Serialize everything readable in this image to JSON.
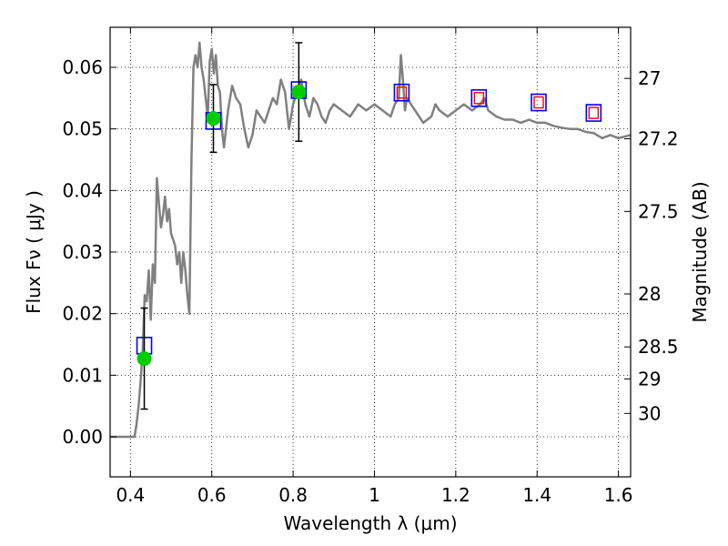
{
  "chart_data": {
    "type": "line",
    "xlabel": "Wavelength  λ (μm)",
    "ylabel": "Flux  Fν  ( μJy )",
    "y2label": "Magnitude (AB)",
    "xlim": [
      0.35,
      1.63
    ],
    "ylim": [
      -0.0065,
      0.0665
    ],
    "grid": true,
    "x_ticks": [
      0.4,
      0.6,
      0.8,
      1.0,
      1.2,
      1.4,
      1.6
    ],
    "x_tick_labels": [
      "0.4",
      "0.6",
      "0.8",
      "1",
      "1.2",
      "1.4",
      "1.6"
    ],
    "y_ticks": [
      0.0,
      0.01,
      0.02,
      0.03,
      0.04,
      0.05,
      0.06
    ],
    "y_tick_labels": [
      "0.00",
      "0.01",
      "0.02",
      "0.03",
      "0.04",
      "0.05",
      "0.06"
    ],
    "y2_ticks": [
      {
        "label": "27",
        "flux": 0.0582
      },
      {
        "label": "27.2",
        "flux": 0.0484
      },
      {
        "label": "27.5",
        "flux": 0.0366
      },
      {
        "label": "28",
        "flux": 0.0232
      },
      {
        "label": "28.5",
        "flux": 0.0146
      },
      {
        "label": "29",
        "flux": 0.0094
      },
      {
        "label": "30",
        "flux": 0.0038
      }
    ],
    "colors": {
      "sed_line": "#808080",
      "model_box": "#0000ff",
      "inner_box": "#ff0000",
      "observed": "#00cc00",
      "errorbar": "#000000",
      "grid": "#000000"
    },
    "series": [
      {
        "style": "line",
        "x": [
          0.35,
          0.41,
          0.415,
          0.42,
          0.425,
          0.43,
          0.435,
          0.44,
          0.445,
          0.45,
          0.455,
          0.46,
          0.465,
          0.47,
          0.475,
          0.48,
          0.485,
          0.49,
          0.495,
          0.5,
          0.505,
          0.51,
          0.515,
          0.52,
          0.525,
          0.53,
          0.535,
          0.54,
          0.545,
          0.55,
          0.555,
          0.56,
          0.565,
          0.57,
          0.575,
          0.58,
          0.585,
          0.59,
          0.595,
          0.6,
          0.605,
          0.61,
          0.615,
          0.62,
          0.625,
          0.63,
          0.64,
          0.65,
          0.66,
          0.67,
          0.68,
          0.69,
          0.7,
          0.71,
          0.72,
          0.73,
          0.74,
          0.75,
          0.76,
          0.77,
          0.78,
          0.79,
          0.8,
          0.81,
          0.82,
          0.83,
          0.84,
          0.85,
          0.86,
          0.87,
          0.88,
          0.89,
          0.9,
          0.92,
          0.94,
          0.96,
          0.98,
          1.0,
          1.02,
          1.04,
          1.05,
          1.06,
          1.065,
          1.07,
          1.075,
          1.08,
          1.1,
          1.12,
          1.14,
          1.15,
          1.16,
          1.18,
          1.2,
          1.22,
          1.24,
          1.26,
          1.27,
          1.28,
          1.3,
          1.32,
          1.34,
          1.36,
          1.38,
          1.4,
          1.42,
          1.44,
          1.46,
          1.48,
          1.5,
          1.52,
          1.54,
          1.56,
          1.58,
          1.6,
          1.63
        ],
        "y": [
          0.0,
          0.0,
          0.002,
          0.005,
          0.009,
          0.014,
          0.023,
          0.022,
          0.027,
          0.019,
          0.028,
          0.025,
          0.042,
          0.038,
          0.034,
          0.036,
          0.039,
          0.035,
          0.037,
          0.033,
          0.032,
          0.031,
          0.028,
          0.03,
          0.025,
          0.03,
          0.027,
          0.023,
          0.02,
          0.045,
          0.06,
          0.062,
          0.06,
          0.064,
          0.06,
          0.058,
          0.055,
          0.052,
          0.061,
          0.063,
          0.059,
          0.062,
          0.057,
          0.056,
          0.05,
          0.047,
          0.053,
          0.057,
          0.055,
          0.054,
          0.05,
          0.047,
          0.049,
          0.053,
          0.052,
          0.051,
          0.053,
          0.055,
          0.054,
          0.058,
          0.056,
          0.05,
          0.054,
          0.056,
          0.058,
          0.054,
          0.052,
          0.055,
          0.054,
          0.052,
          0.051,
          0.053,
          0.054,
          0.053,
          0.052,
          0.054,
          0.053,
          0.054,
          0.053,
          0.052,
          0.054,
          0.055,
          0.062,
          0.058,
          0.053,
          0.055,
          0.053,
          0.051,
          0.052,
          0.054,
          0.053,
          0.052,
          0.053,
          0.054,
          0.053,
          0.054,
          0.055,
          0.053,
          0.052,
          0.0515,
          0.0515,
          0.051,
          0.0515,
          0.051,
          0.051,
          0.0505,
          0.0502,
          0.05,
          0.05,
          0.0495,
          0.0493,
          0.0485,
          0.049,
          0.0485,
          0.049
        ]
      },
      {
        "style": "squares",
        "x": [
          0.434,
          0.604,
          0.814,
          1.067,
          1.257,
          1.404,
          1.539
        ],
        "y": [
          0.0148,
          0.0513,
          0.0563,
          0.0559,
          0.055,
          0.0543,
          0.0526
        ]
      },
      {
        "style": "inner-squares",
        "x": [
          1.067,
          1.257,
          1.404,
          1.539
        ],
        "y": [
          0.0559,
          0.055,
          0.0543,
          0.0526
        ]
      },
      {
        "style": "points-errorbars",
        "x": [
          0.434,
          0.604,
          0.814
        ],
        "y": [
          0.0127,
          0.0517,
          0.056
        ],
        "yerr": [
          0.0082,
          0.0055,
          0.008
        ]
      }
    ]
  }
}
